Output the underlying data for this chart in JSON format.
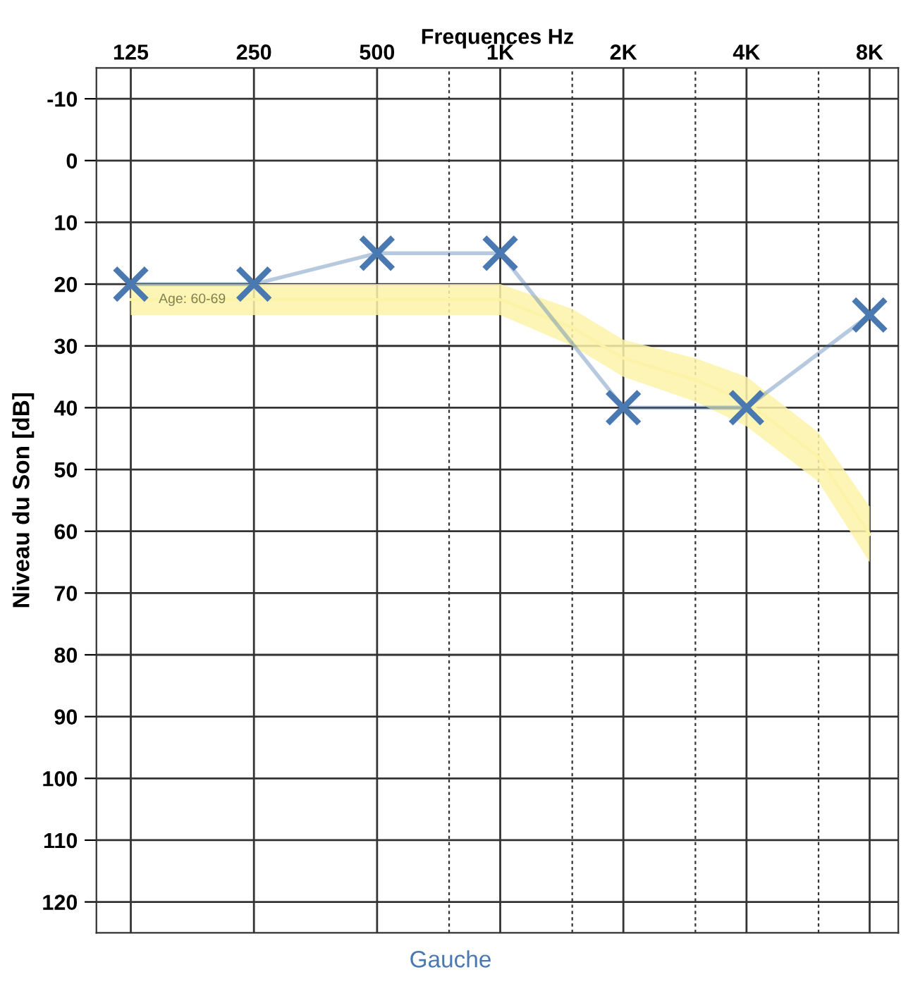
{
  "chart_data": {
    "type": "line",
    "xlabel": "Frequences Hz",
    "ylabel": "Niveau du Son [dB]",
    "x": [
      125,
      250,
      500,
      1000,
      2000,
      4000,
      8000
    ],
    "series": [
      {
        "name": "Age: 60-69",
        "color": "#fbf3a8",
        "marker": "none",
        "x": [
          125,
          250,
          500,
          1000,
          1500,
          2000,
          3000,
          4000,
          6000,
          8000
        ],
        "values": [
          22.5,
          22.5,
          22.5,
          22.5,
          27,
          32,
          35.5,
          39,
          48,
          60.5
        ],
        "lower": [
          20,
          20,
          20,
          20,
          24,
          29,
          32,
          35,
          44,
          56
        ],
        "upper": [
          25,
          25,
          25,
          25,
          30,
          35,
          39,
          43,
          52,
          65
        ]
      },
      {
        "type": "line",
        "color": "#4a78b0",
        "values": [
          20,
          20,
          15,
          15,
          40,
          40,
          25
        ]
      }
    ],
    "marker": "cross",
    "xlim": [
      103,
      9400
    ],
    "ylim": [
      125,
      -15
    ],
    "xticks": [
      125,
      250,
      500,
      {
        "value": 750,
        "label": null
      },
      {
        "value": 1000,
        "label": "1K"
      },
      {
        "value": 1500,
        "label": null
      },
      {
        "value": 2000,
        "label": "2K"
      },
      {
        "value": 3000,
        "label": null
      },
      {
        "value": 4000,
        "label": "4K"
      },
      {
        "value": 6000,
        "label": null
      },
      {
        "value": 8000,
        "label": "8K"
      }
    ],
    "yticks": [
      -10,
      0,
      10,
      20,
      30,
      40,
      50,
      60,
      70,
      80,
      90,
      100,
      110,
      120
    ],
    "log": "x",
    "grid": true,
    "annotations": [
      "Gauche"
    ]
  }
}
